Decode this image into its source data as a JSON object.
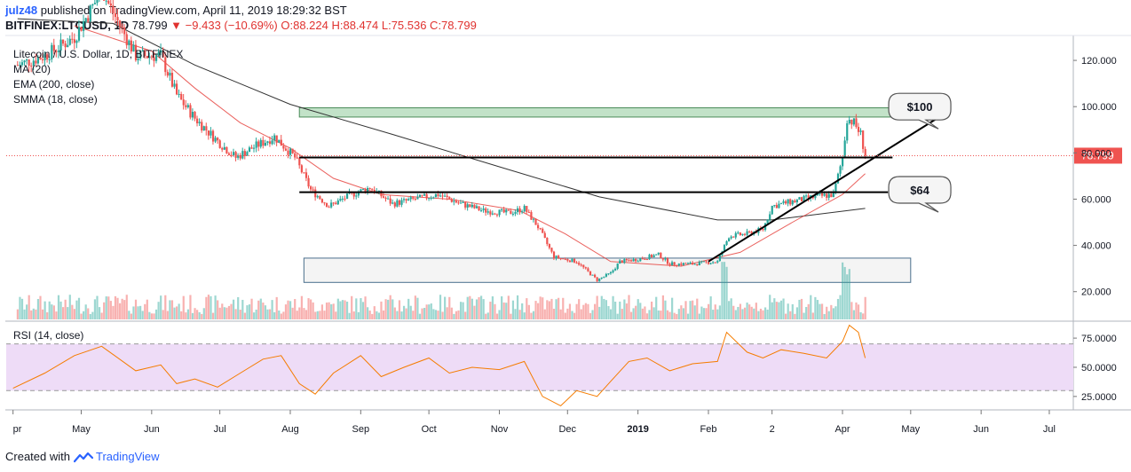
{
  "header": {
    "user": "julz48",
    "published_text": "published on TradingView.com, April 11, 2019 18:29:32 BST",
    "symbol": "BITFINEX:LTCUSD, 1D",
    "last": "78.799",
    "change": "−9.433 (−10.69%)",
    "ohlc": "O:88.224 H:88.474 L:75.536 C:78.799"
  },
  "legend": {
    "title": "Litecoin / U.S. Dollar, 1D, BITFINEX",
    "ma": "MA (20)",
    "ema": "EMA (200, close)",
    "smma": "SMMA (18, close)"
  },
  "rsi_label": "RSI (14, close)",
  "footer": {
    "created_with": "Created with",
    "brand": "TradingView"
  },
  "colors": {
    "up": "#26a69a",
    "down": "#ef5350",
    "ema": "#333333",
    "smma": "#e53935",
    "rsi_line": "#f57c00",
    "rsi_band": "#eedcf7",
    "resistance_zone": "#a8d5b0",
    "support_zone": "#f2f2f2",
    "accent": "#2962ff"
  },
  "chart_data": [
    {
      "type": "candlestick",
      "title": "Litecoin / U.S. Dollar, 1D, BITFINEX",
      "ylim": [
        8,
        130
      ],
      "y_ticks": [
        "120.000",
        "100.000",
        "80.000",
        "60.000",
        "40.000",
        "20.000"
      ],
      "y_tick_values": [
        120,
        100,
        80,
        60,
        40,
        20
      ],
      "last_price": 78.799,
      "last_price_label": "78.799",
      "x_ticks": [
        "pr",
        "May",
        "Jun",
        "Jul",
        "Aug",
        "Sep",
        "Oct",
        "Nov",
        "Dec",
        "2019",
        "Feb",
        "2",
        "Apr",
        "May",
        "Jun",
        "Jul"
      ],
      "x_tick_dates": [
        "2018-04-01",
        "2018-05-01",
        "2018-06-01",
        "2018-07-01",
        "2018-08-01",
        "2018-09-01",
        "2018-10-01",
        "2018-11-01",
        "2018-12-01",
        "2019-01-01",
        "2019-02-01",
        "2019-03-01",
        "2019-04-01",
        "2019-05-01",
        "2019-06-01",
        "2019-07-01"
      ],
      "close_path": [
        {
          "date": "2018-04-03",
          "value": 118
        },
        {
          "date": "2018-04-15",
          "value": 122
        },
        {
          "date": "2018-04-28",
          "value": 130
        },
        {
          "date": "2018-05-10",
          "value": 150
        },
        {
          "date": "2018-05-25",
          "value": 122
        },
        {
          "date": "2018-06-05",
          "value": 122
        },
        {
          "date": "2018-06-12",
          "value": 105
        },
        {
          "date": "2018-06-20",
          "value": 95
        },
        {
          "date": "2018-06-30",
          "value": 85
        },
        {
          "date": "2018-07-08",
          "value": 78
        },
        {
          "date": "2018-07-15",
          "value": 82
        },
        {
          "date": "2018-07-25",
          "value": 87
        },
        {
          "date": "2018-08-03",
          "value": 78
        },
        {
          "date": "2018-08-10",
          "value": 64
        },
        {
          "date": "2018-08-18",
          "value": 57
        },
        {
          "date": "2018-08-28",
          "value": 62
        },
        {
          "date": "2018-09-05",
          "value": 65
        },
        {
          "date": "2018-09-15",
          "value": 58
        },
        {
          "date": "2018-09-25",
          "value": 60
        },
        {
          "date": "2018-10-05",
          "value": 62
        },
        {
          "date": "2018-10-15",
          "value": 58
        },
        {
          "date": "2018-10-25",
          "value": 55
        },
        {
          "date": "2018-11-05",
          "value": 54
        },
        {
          "date": "2018-11-12",
          "value": 56
        },
        {
          "date": "2018-11-18",
          "value": 48
        },
        {
          "date": "2018-11-25",
          "value": 35
        },
        {
          "date": "2018-12-05",
          "value": 33
        },
        {
          "date": "2018-12-14",
          "value": 25
        },
        {
          "date": "2018-12-20",
          "value": 28
        },
        {
          "date": "2018-12-24",
          "value": 33
        },
        {
          "date": "2019-01-01",
          "value": 34
        },
        {
          "date": "2019-01-10",
          "value": 36
        },
        {
          "date": "2019-01-15",
          "value": 32
        },
        {
          "date": "2019-01-25",
          "value": 32
        },
        {
          "date": "2019-02-05",
          "value": 33
        },
        {
          "date": "2019-02-10",
          "value": 44
        },
        {
          "date": "2019-02-18",
          "value": 45
        },
        {
          "date": "2019-02-25",
          "value": 47
        },
        {
          "date": "2019-03-01",
          "value": 57
        },
        {
          "date": "2019-03-10",
          "value": 59
        },
        {
          "date": "2019-03-20",
          "value": 61
        },
        {
          "date": "2019-03-28",
          "value": 62
        },
        {
          "date": "2019-04-01",
          "value": 78
        },
        {
          "date": "2019-04-03",
          "value": 95
        },
        {
          "date": "2019-04-06",
          "value": 93
        },
        {
          "date": "2019-04-09",
          "value": 88
        },
        {
          "date": "2019-04-11",
          "value": 78.799
        }
      ],
      "ema_200": [
        {
          "date": "2018-04-03",
          "value": 152
        },
        {
          "date": "2018-05-15",
          "value": 136
        },
        {
          "date": "2018-06-20",
          "value": 118
        },
        {
          "date": "2018-08-01",
          "value": 101
        },
        {
          "date": "2018-09-15",
          "value": 88
        },
        {
          "date": "2018-11-01",
          "value": 74
        },
        {
          "date": "2018-12-15",
          "value": 61
        },
        {
          "date": "2019-02-05",
          "value": 51
        },
        {
          "date": "2019-03-01",
          "value": 51
        },
        {
          "date": "2019-04-11",
          "value": 56
        }
      ],
      "smma_18": [
        {
          "date": "2018-04-28",
          "value": 135
        },
        {
          "date": "2018-06-01",
          "value": 124
        },
        {
          "date": "2018-06-20",
          "value": 108
        },
        {
          "date": "2018-07-10",
          "value": 93
        },
        {
          "date": "2018-08-01",
          "value": 82
        },
        {
          "date": "2018-08-20",
          "value": 69
        },
        {
          "date": "2018-09-10",
          "value": 62
        },
        {
          "date": "2018-10-10",
          "value": 60
        },
        {
          "date": "2018-11-10",
          "value": 55
        },
        {
          "date": "2018-11-30",
          "value": 45
        },
        {
          "date": "2018-12-20",
          "value": 33
        },
        {
          "date": "2019-01-20",
          "value": 31
        },
        {
          "date": "2019-02-15",
          "value": 37
        },
        {
          "date": "2019-03-10",
          "value": 50
        },
        {
          "date": "2019-04-01",
          "value": 62
        },
        {
          "date": "2019-04-11",
          "value": 71
        }
      ],
      "resistance_zone": {
        "from": "2018-08-05",
        "to": "2019-04-26",
        "low": 95.5,
        "high": 99.5
      },
      "support_zone": {
        "from": "2018-08-07",
        "to": "2019-05-01",
        "low": 24,
        "high": 34.5
      },
      "horizontal_levels": [
        {
          "from": "2018-08-05",
          "to": "2019-04-23",
          "value": 78
        },
        {
          "from": "2018-08-05",
          "to": "2019-04-21",
          "value": 63
        }
      ],
      "trendline": {
        "from": {
          "date": "2019-02-01",
          "value": 33
        },
        "to": {
          "date": "2019-05-16",
          "value": 97
        }
      },
      "callouts": [
        {
          "label": "$100",
          "date": "2019-05-05",
          "value": 100
        },
        {
          "label": "$64",
          "date": "2019-05-05",
          "value": 64
        }
      ]
    },
    {
      "type": "line",
      "title": "RSI (14, close)",
      "ylim": [
        15,
        88
      ],
      "y_ticks": [
        "75.0000",
        "50.0000",
        "25.0000"
      ],
      "y_tick_values": [
        75,
        50,
        25
      ],
      "band": [
        30,
        70
      ],
      "values": [
        {
          "date": "2018-04-01",
          "value": 32
        },
        {
          "date": "2018-04-15",
          "value": 45
        },
        {
          "date": "2018-04-28",
          "value": 60
        },
        {
          "date": "2018-05-10",
          "value": 68
        },
        {
          "date": "2018-05-25",
          "value": 47
        },
        {
          "date": "2018-06-05",
          "value": 52
        },
        {
          "date": "2018-06-12",
          "value": 36
        },
        {
          "date": "2018-06-20",
          "value": 40
        },
        {
          "date": "2018-06-30",
          "value": 33
        },
        {
          "date": "2018-07-10",
          "value": 45
        },
        {
          "date": "2018-07-20",
          "value": 57
        },
        {
          "date": "2018-07-28",
          "value": 60
        },
        {
          "date": "2018-08-05",
          "value": 36
        },
        {
          "date": "2018-08-12",
          "value": 27
        },
        {
          "date": "2018-08-20",
          "value": 45
        },
        {
          "date": "2018-09-01",
          "value": 60
        },
        {
          "date": "2018-09-10",
          "value": 42
        },
        {
          "date": "2018-09-20",
          "value": 50
        },
        {
          "date": "2018-10-01",
          "value": 58
        },
        {
          "date": "2018-10-10",
          "value": 45
        },
        {
          "date": "2018-10-20",
          "value": 50
        },
        {
          "date": "2018-11-01",
          "value": 48
        },
        {
          "date": "2018-11-12",
          "value": 55
        },
        {
          "date": "2018-11-20",
          "value": 25
        },
        {
          "date": "2018-11-28",
          "value": 17
        },
        {
          "date": "2018-12-05",
          "value": 30
        },
        {
          "date": "2018-12-14",
          "value": 25
        },
        {
          "date": "2018-12-20",
          "value": 38
        },
        {
          "date": "2018-12-28",
          "value": 55
        },
        {
          "date": "2019-01-05",
          "value": 58
        },
        {
          "date": "2019-01-15",
          "value": 47
        },
        {
          "date": "2019-01-25",
          "value": 53
        },
        {
          "date": "2019-02-05",
          "value": 55
        },
        {
          "date": "2019-02-09",
          "value": 80
        },
        {
          "date": "2019-02-18",
          "value": 63
        },
        {
          "date": "2019-02-25",
          "value": 58
        },
        {
          "date": "2019-03-05",
          "value": 65
        },
        {
          "date": "2019-03-15",
          "value": 62
        },
        {
          "date": "2019-03-25",
          "value": 58
        },
        {
          "date": "2019-04-01",
          "value": 72
        },
        {
          "date": "2019-04-04",
          "value": 86
        },
        {
          "date": "2019-04-08",
          "value": 80
        },
        {
          "date": "2019-04-11",
          "value": 58
        }
      ]
    }
  ]
}
